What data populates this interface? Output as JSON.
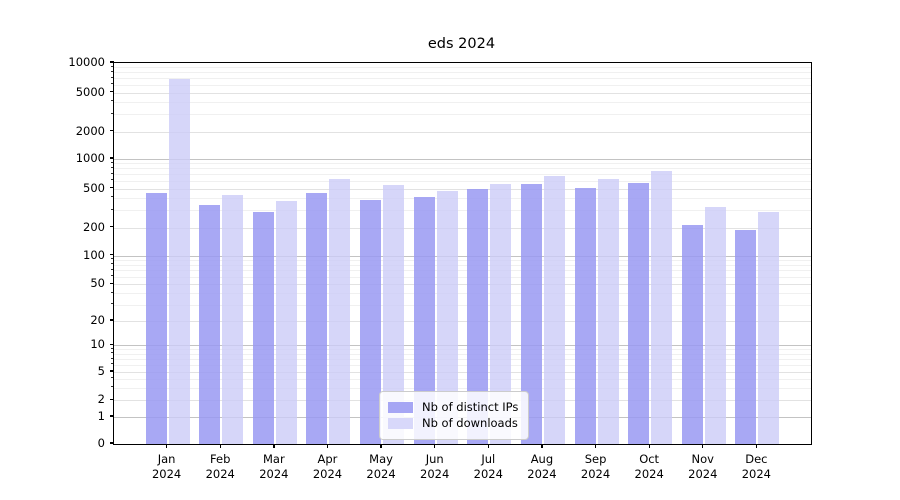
{
  "title": "eds 2024",
  "legend": {
    "item1": "Nb of distinct IPs",
    "item2": "Nb of downloads"
  },
  "colors": {
    "distinct_ips_bar": "rgba(153,153,242,0.85)",
    "distinct_ips_swatch": "#a6a6f4",
    "downloads_bar": "rgba(204,204,248,0.8)",
    "downloads_swatch": "#d8d8fa",
    "axis": "#000000",
    "grid_major": "#c3c3c3",
    "grid_minor": "#f0f0f0"
  },
  "chart_data": {
    "type": "bar",
    "title": "eds 2024",
    "xlabel": "",
    "ylabel": "",
    "yscale": "symlog",
    "ylim": [
      0,
      10000
    ],
    "grid": true,
    "legend_position": "lower center",
    "categories": [
      "Jan\n2024",
      "Feb\n2024",
      "Mar\n2024",
      "Apr\n2024",
      "May\n2024",
      "Jun\n2024",
      "Jul\n2024",
      "Aug\n2024",
      "Sep\n2024",
      "Oct\n2024",
      "Nov\n2024",
      "Dec\n2024"
    ],
    "y_ticks": [
      0,
      1,
      2,
      5,
      10,
      20,
      50,
      100,
      200,
      500,
      1000,
      2000,
      5000,
      10000
    ],
    "series": [
      {
        "name": "Nb of distinct IPs",
        "color": "rgba(153,153,242,0.85)",
        "legend_color": "#a6a6f4",
        "values": [
          450,
          340,
          290,
          450,
          380,
          410,
          490,
          560,
          510,
          570,
          210,
          190
        ]
      },
      {
        "name": "Nb of downloads",
        "color": "rgba(204,204,248,0.8)",
        "legend_color": "#d8d8fa",
        "values": [
          6900,
          430,
          370,
          620,
          540,
          470,
          550,
          670,
          630,
          750,
          320,
          290
        ]
      }
    ]
  }
}
